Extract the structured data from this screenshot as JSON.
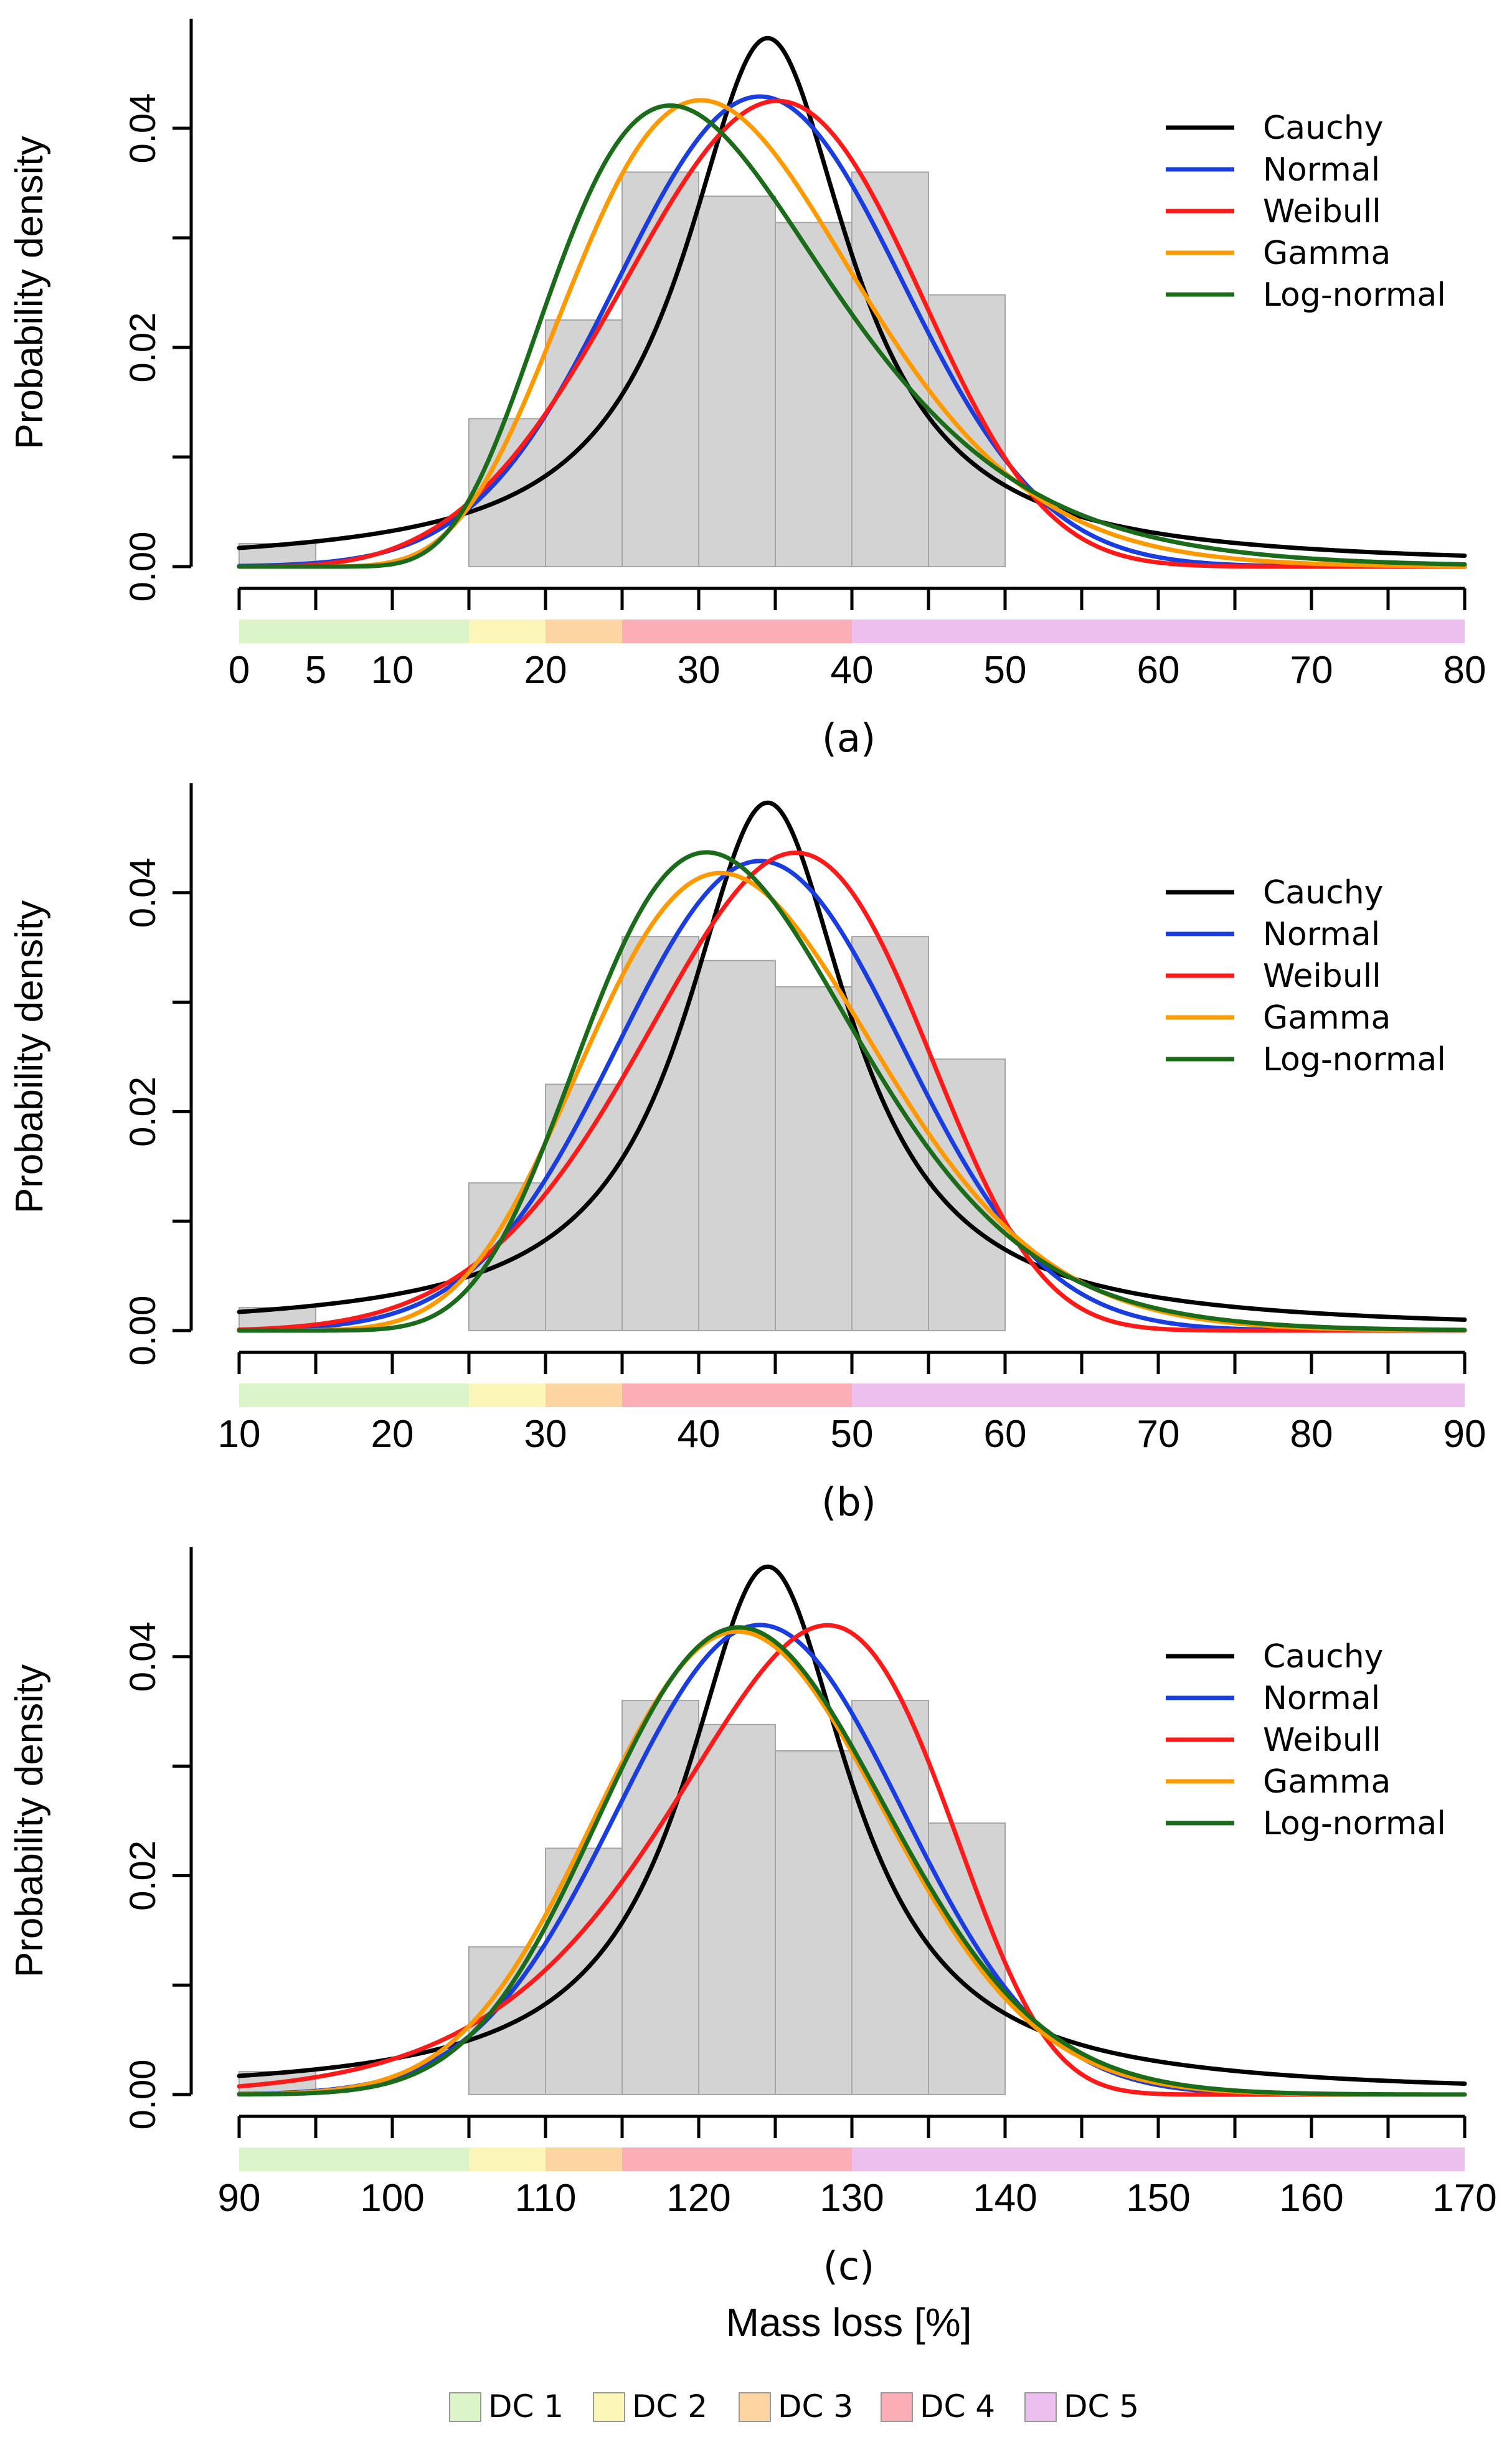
{
  "chart_data": [
    {
      "type": "histogram+density",
      "panel_label": "(a)",
      "xlim": [
        0,
        80
      ],
      "ylim": [
        0,
        0.05
      ],
      "ylabel": "Probability density",
      "yticks": [
        0,
        0.01,
        0.02,
        0.03,
        0.04
      ],
      "ytick_labels": [
        "0.00",
        "",
        "0.02",
        "",
        "0.04"
      ],
      "xticks": [
        0,
        5,
        10,
        15,
        20,
        25,
        30,
        35,
        40,
        45,
        50,
        55,
        60,
        65,
        70,
        75,
        80
      ],
      "xtick_labels": [
        "0",
        "5",
        "10",
        "",
        "20",
        "",
        "30",
        "",
        "40",
        "",
        "50",
        "",
        "60",
        "",
        "70",
        "",
        "80"
      ],
      "histogram": {
        "bin_edges": [
          0,
          5,
          10,
          15,
          20,
          25,
          30,
          35,
          40,
          45,
          50
        ],
        "densities": [
          0.0021,
          0,
          0,
          0.0135,
          0.0225,
          0.036,
          0.0338,
          0.0314,
          0.036,
          0.0248
        ]
      },
      "dc_bands": [
        [
          0,
          15,
          "DC 1"
        ],
        [
          15,
          20,
          "DC 2"
        ],
        [
          20,
          25,
          "DC 3"
        ],
        [
          25,
          40,
          "DC 4"
        ],
        [
          40,
          80,
          "DC 5"
        ]
      ],
      "series": [
        {
          "name": "Cauchy",
          "color": "#000000",
          "dist": "cauchy",
          "params": [
            34.5,
            6.6
          ]
        },
        {
          "name": "Normal",
          "color": "#1a3de0",
          "dist": "normal",
          "params": [
            34.0,
            9.3
          ]
        },
        {
          "name": "Weibull",
          "color": "#ff1a1a",
          "dist": "weibull",
          "params": [
            4.2,
            37.5
          ]
        },
        {
          "name": "Gamma",
          "color": "#ff9900",
          "dist": "gamma",
          "params": [
            11.5,
            2.87
          ]
        },
        {
          "name": "Log-normal",
          "color": "#1a6b1a",
          "dist": "lognormal",
          "params": [
            3.44,
            0.32
          ]
        }
      ],
      "legend_position": "top-right"
    },
    {
      "type": "histogram+density",
      "panel_label": "(b)",
      "xlim": [
        10,
        90
      ],
      "ylim": [
        0,
        0.05
      ],
      "ylabel": "Probability density",
      "yticks": [
        0,
        0.01,
        0.02,
        0.03,
        0.04
      ],
      "ytick_labels": [
        "0.00",
        "",
        "0.02",
        "",
        "0.04"
      ],
      "xticks": [
        10,
        15,
        20,
        25,
        30,
        35,
        40,
        45,
        50,
        55,
        60,
        65,
        70,
        75,
        80,
        85,
        90
      ],
      "xtick_labels": [
        "10",
        "",
        "20",
        "",
        "30",
        "",
        "40",
        "",
        "50",
        "",
        "60",
        "",
        "70",
        "",
        "80",
        "",
        "90"
      ],
      "histogram": {
        "bin_edges": [
          10,
          15,
          20,
          25,
          30,
          35,
          40,
          45,
          50,
          55,
          60
        ],
        "densities": [
          0.0021,
          0,
          0,
          0.0135,
          0.0225,
          0.036,
          0.0338,
          0.0314,
          0.036,
          0.0248
        ]
      },
      "dc_bands": [
        [
          10,
          25,
          "DC 1"
        ],
        [
          25,
          30,
          "DC 2"
        ],
        [
          30,
          35,
          "DC 3"
        ],
        [
          35,
          50,
          "DC 4"
        ],
        [
          50,
          90,
          "DC 5"
        ]
      ],
      "series": [
        {
          "name": "Cauchy",
          "color": "#000000",
          "dist": "cauchy",
          "params": [
            44.5,
            6.6
          ]
        },
        {
          "name": "Normal",
          "color": "#1a3de0",
          "dist": "normal",
          "params": [
            44.0,
            9.3
          ]
        },
        {
          "name": "Weibull",
          "color": "#ff1a1a",
          "dist": "weibull",
          "params": [
            5.6,
            48.0
          ]
        },
        {
          "name": "Gamma",
          "color": "#ff9900",
          "dist": "gamma",
          "params": [
            20.0,
            2.18
          ]
        },
        {
          "name": "Log-normal",
          "color": "#1a6b1a",
          "dist": "lognormal",
          "params": [
            3.75,
            0.22
          ]
        }
      ],
      "legend_position": "top-right"
    },
    {
      "type": "histogram+density",
      "panel_label": "(c)",
      "xlim": [
        90,
        170
      ],
      "ylim": [
        0,
        0.05
      ],
      "ylabel": "Probability density",
      "xlabel": "Mass loss [%]",
      "yticks": [
        0,
        0.01,
        0.02,
        0.03,
        0.04
      ],
      "ytick_labels": [
        "0.00",
        "",
        "0.02",
        "",
        "0.04"
      ],
      "xticks": [
        90,
        95,
        100,
        105,
        110,
        115,
        120,
        125,
        130,
        135,
        140,
        145,
        150,
        155,
        160,
        165,
        170
      ],
      "xtick_labels": [
        "90",
        "",
        "100",
        "",
        "110",
        "",
        "120",
        "",
        "130",
        "",
        "140",
        "",
        "150",
        "",
        "160",
        "",
        "170"
      ],
      "histogram": {
        "bin_edges": [
          90,
          95,
          100,
          105,
          110,
          115,
          120,
          125,
          130,
          135,
          140
        ],
        "densities": [
          0.0021,
          0,
          0,
          0.0135,
          0.0225,
          0.036,
          0.0338,
          0.0314,
          0.036,
          0.0248
        ]
      },
      "dc_bands": [
        [
          90,
          105,
          "DC 1"
        ],
        [
          105,
          110,
          "DC 2"
        ],
        [
          110,
          115,
          "DC 3"
        ],
        [
          115,
          130,
          "DC 4"
        ],
        [
          130,
          170,
          "DC 5"
        ]
      ],
      "series": [
        {
          "name": "Cauchy",
          "color": "#000000",
          "dist": "cauchy",
          "params": [
            124.5,
            6.6
          ]
        },
        {
          "name": "Normal",
          "color": "#1a3de0",
          "dist": "normal",
          "params": [
            124.0,
            9.3
          ]
        },
        {
          "name": "Weibull",
          "color": "#ff1a1a",
          "dist": "weibull",
          "params": [
            15.0,
            129.0
          ]
        },
        {
          "name": "Gamma",
          "color": "#ff9900",
          "dist": "gamma",
          "params": [
            170.0,
            0.725
          ]
        },
        {
          "name": "Log-normal",
          "color": "#1a6b1a",
          "dist": "lognormal",
          "params": [
            4.815,
            0.076
          ]
        }
      ],
      "legend_position": "top-right"
    }
  ],
  "figure": {
    "xlabel": "Mass loss [%]",
    "dc_legend": [
      {
        "label": "DC 1",
        "color": "#dcf5c8"
      },
      {
        "label": "DC 2",
        "color": "#fbf5b8"
      },
      {
        "label": "DC 3",
        "color": "#fdd5a2"
      },
      {
        "label": "DC 4",
        "color": "#fbaeb5"
      },
      {
        "label": "DC 5",
        "color": "#ecbfee"
      }
    ],
    "hist_fill": "#d3d3d3",
    "hist_edge": "#a6a6a6"
  }
}
